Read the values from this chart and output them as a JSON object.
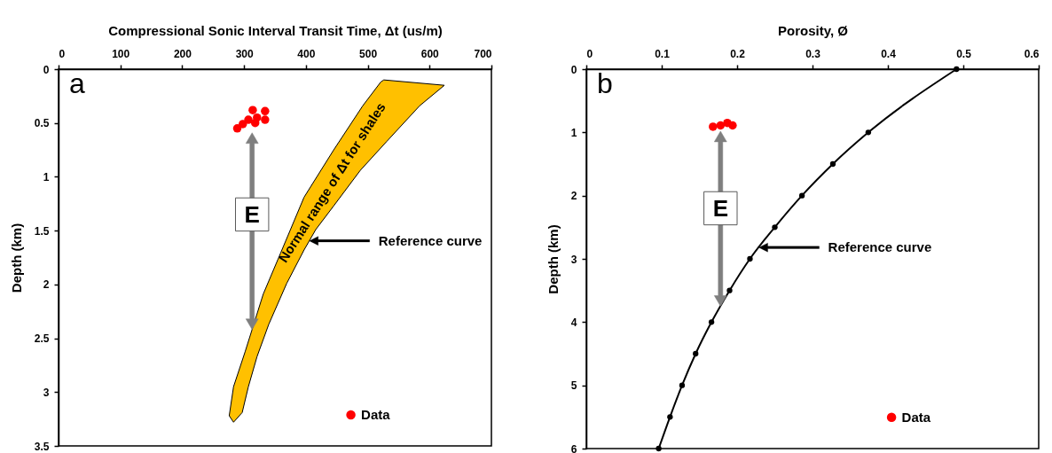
{
  "chart_data": [
    {
      "type": "scatter",
      "xlabel": "Compressional Sonic Interval Transit Time, Δt (us/m)",
      "ylabel": "Depth (km)",
      "xlim": [
        0,
        700
      ],
      "xticks": [
        0,
        100,
        200,
        300,
        400,
        500,
        600,
        700
      ],
      "ylim": [
        3.5,
        0
      ],
      "yticks": [
        0,
        0.5,
        1,
        1.5,
        2,
        2.5,
        3,
        3.5
      ],
      "legend": "bottom right",
      "series": [
        {
          "type": "area",
          "color": "#ffc000",
          "x": [
            526,
            624,
            584,
            531,
            488,
            445,
            416,
            397,
            369,
            340,
            321,
            307,
            297,
            283,
            276,
            283,
            302,
            331,
            359,
            397,
            445,
            492,
            521
          ],
          "values": [
            0.1,
            0.15,
            0.34,
            0.67,
            0.94,
            1.27,
            1.49,
            1.68,
            1.99,
            2.37,
            2.67,
            2.95,
            3.19,
            3.28,
            3.22,
            2.95,
            2.62,
            2.09,
            1.71,
            1.19,
            0.75,
            0.34,
            0.12
          ]
        },
        {
          "name": "Data",
          "marker": "circle",
          "color": "#ff0000",
          "x": [
            289,
            298,
            307,
            314,
            321,
            318,
            334,
            334
          ],
          "values": [
            0.55,
            0.51,
            0.47,
            0.38,
            0.45,
            0.5,
            0.39,
            0.47
          ]
        }
      ],
      "annotations": [
        "a",
        {
          "text": "E",
          "x": 313,
          "y": 1.35
        },
        "Reference curve",
        "Normal range of Δt for shales"
      ]
    },
    {
      "type": "scatter",
      "xlabel": "Porosity, Ø",
      "ylabel": "Depth (km)",
      "xlim": [
        0,
        0.6
      ],
      "xticks": [
        0,
        0.1,
        0.2,
        0.3,
        0.4,
        0.5,
        0.6
      ],
      "ylim": [
        6,
        0
      ],
      "yticks": [
        0,
        1,
        2,
        3,
        4,
        5,
        6
      ],
      "legend": "bottom right",
      "series": [
        {
          "type": "line",
          "marker": "circle",
          "color": "#000000",
          "x": [
            0.491,
            0.374,
            0.327,
            0.286,
            0.25,
            0.217,
            0.19,
            0.166,
            0.145,
            0.127,
            0.111,
            0.096
          ],
          "values": [
            0,
            1,
            1.5,
            2,
            2.5,
            3,
            3.5,
            4,
            4.5,
            5,
            5.5,
            6
          ]
        },
        {
          "name": "Data",
          "marker": "circle",
          "color": "#ff0000",
          "x": [
            0.168,
            0.178,
            0.187,
            0.194
          ],
          "values": [
            0.91,
            0.89,
            0.85,
            0.89
          ]
        }
      ],
      "annotations": [
        "b",
        {
          "text": "E",
          "x": 0.178,
          "y": 2.2
        },
        "Reference curve"
      ]
    }
  ]
}
